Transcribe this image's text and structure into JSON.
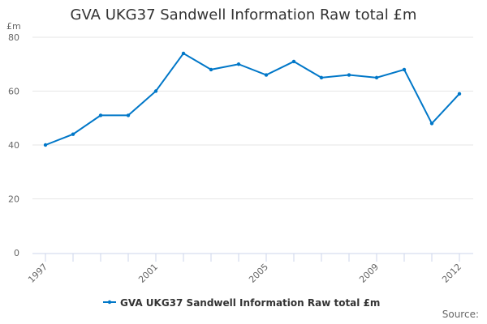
{
  "chart_data": {
    "type": "line",
    "title": "GVA UKG37 Sandwell Information Raw total £m",
    "ylabel": "£m",
    "xlabel": "",
    "x": [
      1997,
      1998,
      1999,
      2000,
      2001,
      2002,
      2003,
      2004,
      2005,
      2006,
      2007,
      2008,
      2009,
      2010,
      2011,
      2012
    ],
    "x_tick_labels": [
      "1997",
      "2001",
      "2005",
      "2009",
      "2012"
    ],
    "y_ticks": [
      0,
      20,
      40,
      60,
      80
    ],
    "ylim": [
      0,
      80
    ],
    "grid": true,
    "legend_position": "bottom",
    "series": [
      {
        "name": "GVA UKG37 Sandwell Information Raw total £m",
        "color": "#0077c8",
        "values": [
          40,
          44,
          51,
          51,
          60,
          74,
          68,
          70,
          66,
          71,
          65,
          66,
          65,
          68,
          48,
          59
        ]
      }
    ]
  },
  "source_label": "Source:"
}
